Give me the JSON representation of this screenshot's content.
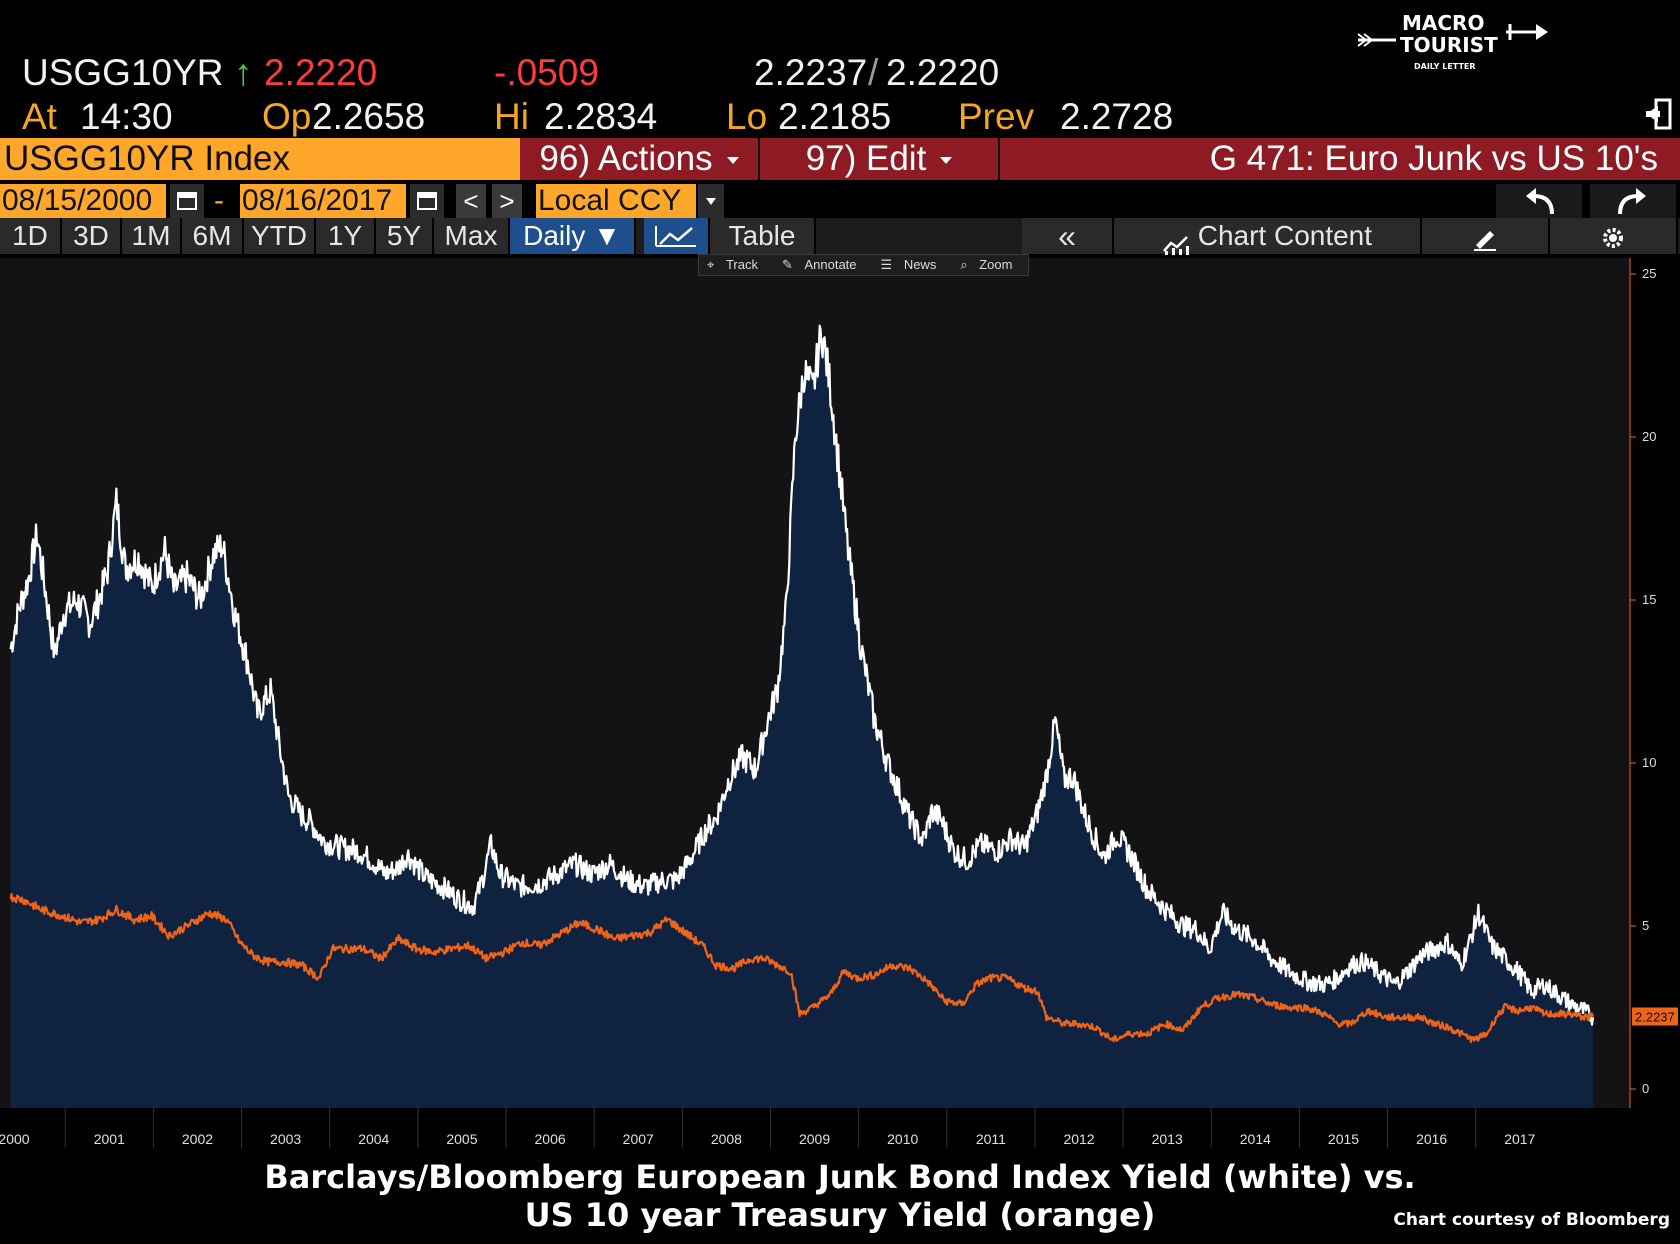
{
  "quote": {
    "ticker": "USGG10YR",
    "arrow": "↑",
    "last": "2.2220",
    "change": "-.0509",
    "bid": "2.2237",
    "sep": "/",
    "ask": "2.2220",
    "at_label": "At",
    "time": "14:30",
    "op_label": "Op",
    "open": "2.2658",
    "hi_label": "Hi",
    "high": "2.2834",
    "lo_label": "Lo",
    "low": "2.2185",
    "prev_label": "Prev",
    "prev": "2.2728"
  },
  "logo": {
    "line1": "MACRO",
    "line2": "TOURIST",
    "line3": "DAILY LETTER"
  },
  "toolbar": {
    "security": "USGG10YR Index",
    "actions": "96) Actions",
    "edit": "97) Edit",
    "title": "G 471: Euro Junk vs US 10's"
  },
  "range": {
    "start": "08/15/2000",
    "dash": "-",
    "end": "08/16/2017",
    "currency": "Local CCY",
    "prev_btn": "<",
    "next_btn": ">"
  },
  "tabs": [
    "1D",
    "3D",
    "1M",
    "6M",
    "YTD",
    "1Y",
    "5Y",
    "Max"
  ],
  "period": "Daily ▼",
  "table_tab": "Table",
  "chart_content": "Chart Content",
  "mini_toolbar": [
    "Track",
    "Annotate",
    "News",
    "Zoom"
  ],
  "colors": {
    "area_fill": "#0f2340",
    "white_line": "#ffffff",
    "orange_line": "#f06418",
    "axis": "#f06418",
    "background": "#131316"
  },
  "chart_data": {
    "type": "line",
    "x_labels": [
      "2000",
      "2001",
      "2002",
      "2003",
      "2004",
      "2005",
      "2006",
      "2007",
      "2008",
      "2009",
      "2010",
      "2011",
      "2012",
      "2013",
      "2014",
      "2015",
      "2016",
      "2017"
    ],
    "ylim": [
      0,
      25
    ],
    "y_ticks": [
      0,
      5,
      10,
      15,
      20,
      25
    ],
    "last_value_label": "2.2237",
    "grid": false,
    "series": [
      {
        "color": "white",
        "fill": true,
        "points": [
          [
            2000.0,
            13.5
          ],
          [
            2000.1,
            14.8
          ],
          [
            2000.2,
            15.6
          ],
          [
            2000.3,
            17.0
          ],
          [
            2000.4,
            15.2
          ],
          [
            2000.5,
            13.3
          ],
          [
            2000.6,
            14.6
          ],
          [
            2000.75,
            15.0
          ],
          [
            2000.9,
            14.3
          ],
          [
            2001.0,
            15.0
          ],
          [
            2001.1,
            15.9
          ],
          [
            2001.2,
            18.0
          ],
          [
            2001.3,
            16.0
          ],
          [
            2001.45,
            16.3
          ],
          [
            2001.6,
            15.4
          ],
          [
            2001.75,
            16.5
          ],
          [
            2001.85,
            15.3
          ],
          [
            2002.0,
            15.7
          ],
          [
            2002.15,
            15.0
          ],
          [
            2002.3,
            16.4
          ],
          [
            2002.4,
            16.7
          ],
          [
            2002.55,
            14.5
          ],
          [
            2002.7,
            13.0
          ],
          [
            2002.8,
            11.5
          ],
          [
            2002.95,
            12.2
          ],
          [
            2003.05,
            10.5
          ],
          [
            2003.15,
            9.0
          ],
          [
            2003.3,
            8.4
          ],
          [
            2003.4,
            8.2
          ],
          [
            2003.55,
            7.6
          ],
          [
            2003.75,
            7.4
          ],
          [
            2003.95,
            7.3
          ],
          [
            2004.1,
            7.0
          ],
          [
            2004.25,
            6.6
          ],
          [
            2004.4,
            6.8
          ],
          [
            2004.5,
            7.2
          ],
          [
            2004.7,
            6.5
          ],
          [
            2004.9,
            6.2
          ],
          [
            2005.1,
            5.8
          ],
          [
            2005.25,
            5.6
          ],
          [
            2005.35,
            6.4
          ],
          [
            2005.45,
            7.5
          ],
          [
            2005.55,
            6.6
          ],
          [
            2005.75,
            6.2
          ],
          [
            2006.0,
            6.3
          ],
          [
            2006.2,
            6.6
          ],
          [
            2006.4,
            6.9
          ],
          [
            2006.6,
            6.6
          ],
          [
            2006.8,
            6.9
          ],
          [
            2007.0,
            6.4
          ],
          [
            2007.2,
            6.2
          ],
          [
            2007.4,
            6.4
          ],
          [
            2007.55,
            6.4
          ],
          [
            2007.7,
            7.0
          ],
          [
            2007.9,
            8.0
          ],
          [
            2008.0,
            8.3
          ],
          [
            2008.15,
            9.5
          ],
          [
            2008.3,
            10.2
          ],
          [
            2008.45,
            9.8
          ],
          [
            2008.6,
            11.4
          ],
          [
            2008.7,
            12.3
          ],
          [
            2008.8,
            14.8
          ],
          [
            2008.9,
            20.0
          ],
          [
            2009.0,
            22.0
          ],
          [
            2009.1,
            21.4
          ],
          [
            2009.2,
            23.3
          ],
          [
            2009.3,
            21.5
          ],
          [
            2009.4,
            19.0
          ],
          [
            2009.5,
            16.5
          ],
          [
            2009.65,
            13.5
          ],
          [
            2009.8,
            11.3
          ],
          [
            2009.95,
            10.0
          ],
          [
            2010.1,
            9.0
          ],
          [
            2010.2,
            8.3
          ],
          [
            2010.35,
            7.6
          ],
          [
            2010.45,
            8.5
          ],
          [
            2010.55,
            8.3
          ],
          [
            2010.7,
            7.3
          ],
          [
            2010.85,
            7.0
          ],
          [
            2011.0,
            7.5
          ],
          [
            2011.2,
            7.3
          ],
          [
            2011.35,
            7.7
          ],
          [
            2011.5,
            7.4
          ],
          [
            2011.65,
            8.5
          ],
          [
            2011.75,
            9.6
          ],
          [
            2011.85,
            11.3
          ],
          [
            2011.95,
            9.5
          ],
          [
            2012.05,
            9.6
          ],
          [
            2012.2,
            8.3
          ],
          [
            2012.4,
            7.1
          ],
          [
            2012.55,
            7.8
          ],
          [
            2012.7,
            7.2
          ],
          [
            2012.9,
            6.1
          ],
          [
            2013.1,
            5.5
          ],
          [
            2013.3,
            5.0
          ],
          [
            2013.45,
            4.9
          ],
          [
            2013.6,
            4.3
          ],
          [
            2013.75,
            5.4
          ],
          [
            2013.9,
            4.9
          ],
          [
            2014.1,
            4.6
          ],
          [
            2014.3,
            4.0
          ],
          [
            2014.5,
            3.6
          ],
          [
            2014.7,
            3.3
          ],
          [
            2014.9,
            3.2
          ],
          [
            2015.05,
            3.4
          ],
          [
            2015.2,
            3.8
          ],
          [
            2015.35,
            3.9
          ],
          [
            2015.55,
            3.5
          ],
          [
            2015.7,
            3.2
          ],
          [
            2015.85,
            3.6
          ],
          [
            2016.0,
            4.1
          ],
          [
            2016.15,
            4.3
          ],
          [
            2016.3,
            4.5
          ],
          [
            2016.45,
            3.8
          ],
          [
            2016.55,
            4.5
          ],
          [
            2016.65,
            5.4
          ],
          [
            2016.8,
            4.4
          ],
          [
            2016.95,
            4.0
          ],
          [
            2017.1,
            3.6
          ],
          [
            2017.25,
            3.0
          ],
          [
            2017.4,
            3.2
          ],
          [
            2017.55,
            2.9
          ],
          [
            2017.7,
            2.6
          ],
          [
            2017.85,
            2.4
          ],
          [
            2017.95,
            2.2
          ]
        ]
      },
      {
        "color": "orange",
        "fill": false,
        "points": [
          [
            2000.0,
            5.9
          ],
          [
            2000.15,
            5.8
          ],
          [
            2000.35,
            5.5
          ],
          [
            2000.6,
            5.3
          ],
          [
            2000.8,
            5.1
          ],
          [
            2001.0,
            5.2
          ],
          [
            2001.2,
            5.5
          ],
          [
            2001.4,
            5.2
          ],
          [
            2001.6,
            5.3
          ],
          [
            2001.8,
            4.7
          ],
          [
            2002.0,
            5.0
          ],
          [
            2002.25,
            5.4
          ],
          [
            2002.45,
            5.2
          ],
          [
            2002.6,
            4.5
          ],
          [
            2002.75,
            4.1
          ],
          [
            2002.9,
            3.9
          ],
          [
            2003.1,
            3.9
          ],
          [
            2003.3,
            3.8
          ],
          [
            2003.5,
            3.4
          ],
          [
            2003.65,
            4.3
          ],
          [
            2003.85,
            4.3
          ],
          [
            2004.0,
            4.3
          ],
          [
            2004.2,
            4.0
          ],
          [
            2004.4,
            4.6
          ],
          [
            2004.6,
            4.3
          ],
          [
            2004.8,
            4.2
          ],
          [
            2005.0,
            4.3
          ],
          [
            2005.2,
            4.4
          ],
          [
            2005.4,
            4.0
          ],
          [
            2005.6,
            4.2
          ],
          [
            2005.8,
            4.5
          ],
          [
            2006.0,
            4.4
          ],
          [
            2006.2,
            4.7
          ],
          [
            2006.45,
            5.1
          ],
          [
            2006.65,
            4.9
          ],
          [
            2006.85,
            4.6
          ],
          [
            2007.05,
            4.7
          ],
          [
            2007.25,
            4.8
          ],
          [
            2007.45,
            5.2
          ],
          [
            2007.65,
            4.8
          ],
          [
            2007.85,
            4.4
          ],
          [
            2008.0,
            3.8
          ],
          [
            2008.2,
            3.7
          ],
          [
            2008.4,
            4.0
          ],
          [
            2008.55,
            4.0
          ],
          [
            2008.7,
            3.8
          ],
          [
            2008.85,
            3.6
          ],
          [
            2008.95,
            2.3
          ],
          [
            2009.1,
            2.5
          ],
          [
            2009.3,
            2.9
          ],
          [
            2009.45,
            3.6
          ],
          [
            2009.6,
            3.4
          ],
          [
            2009.8,
            3.5
          ],
          [
            2010.0,
            3.8
          ],
          [
            2010.2,
            3.7
          ],
          [
            2010.4,
            3.3
          ],
          [
            2010.6,
            2.7
          ],
          [
            2010.8,
            2.6
          ],
          [
            2010.95,
            3.2
          ],
          [
            2011.1,
            3.4
          ],
          [
            2011.3,
            3.4
          ],
          [
            2011.5,
            3.1
          ],
          [
            2011.65,
            3.0
          ],
          [
            2011.75,
            2.2
          ],
          [
            2011.95,
            2.0
          ],
          [
            2012.1,
            2.0
          ],
          [
            2012.3,
            1.9
          ],
          [
            2012.5,
            1.5
          ],
          [
            2012.7,
            1.7
          ],
          [
            2012.9,
            1.7
          ],
          [
            2013.1,
            2.0
          ],
          [
            2013.3,
            1.8
          ],
          [
            2013.5,
            2.5
          ],
          [
            2013.7,
            2.8
          ],
          [
            2013.9,
            2.9
          ],
          [
            2014.1,
            2.8
          ],
          [
            2014.3,
            2.6
          ],
          [
            2014.5,
            2.5
          ],
          [
            2014.7,
            2.5
          ],
          [
            2014.9,
            2.3
          ],
          [
            2015.05,
            2.0
          ],
          [
            2015.2,
            2.0
          ],
          [
            2015.4,
            2.4
          ],
          [
            2015.6,
            2.2
          ],
          [
            2015.8,
            2.2
          ],
          [
            2016.0,
            2.2
          ],
          [
            2016.15,
            2.0
          ],
          [
            2016.3,
            1.9
          ],
          [
            2016.45,
            1.7
          ],
          [
            2016.6,
            1.5
          ],
          [
            2016.75,
            1.7
          ],
          [
            2016.85,
            2.2
          ],
          [
            2016.95,
            2.5
          ],
          [
            2017.1,
            2.4
          ],
          [
            2017.25,
            2.5
          ],
          [
            2017.4,
            2.3
          ],
          [
            2017.55,
            2.3
          ],
          [
            2017.7,
            2.3
          ],
          [
            2017.85,
            2.2
          ],
          [
            2017.95,
            2.22
          ]
        ]
      }
    ]
  },
  "caption": {
    "line1": "Barclays/Bloomberg European Junk Bond Index Yield (white) vs.",
    "line2": "US 10 year Treasury Yield (orange)",
    "credit": "Chart courtesy of Bloomberg"
  }
}
